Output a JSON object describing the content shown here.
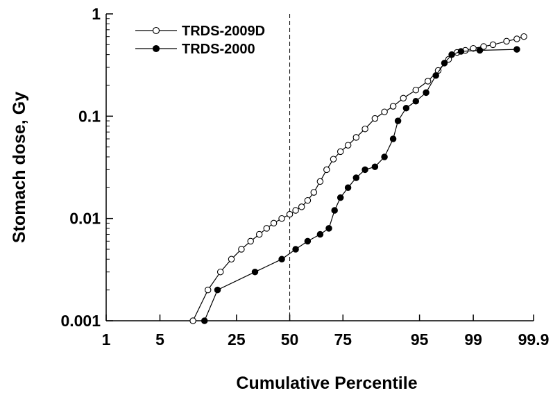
{
  "chart_data": {
    "type": "line",
    "xlabel": "Cumulative Percentile",
    "ylabel": "Stomach dose, Gy",
    "x_scale": "probability",
    "y_scale": "log",
    "xlim": [
      1,
      99.9
    ],
    "ylim": [
      0.001,
      1
    ],
    "x_ticks": [
      "1",
      "5",
      "25",
      "50",
      "75",
      "95",
      "99",
      "99.9"
    ],
    "y_ticks": [
      "0.001",
      "0.01",
      "0.1",
      "1"
    ],
    "reference_line": {
      "x": 50,
      "style": "dashed"
    },
    "legend_position": "top-left",
    "series": [
      {
        "name": "TRDS-2009D",
        "marker": "open-circle",
        "points": [
          [
            11,
            0.001
          ],
          [
            15,
            0.002
          ],
          [
            19,
            0.003
          ],
          [
            23,
            0.004
          ],
          [
            27,
            0.005
          ],
          [
            31,
            0.006
          ],
          [
            35,
            0.007
          ],
          [
            38.5,
            0.008
          ],
          [
            42,
            0.009
          ],
          [
            46,
            0.01
          ],
          [
            50,
            0.011
          ],
          [
            53,
            0.012
          ],
          [
            56,
            0.013
          ],
          [
            59,
            0.015
          ],
          [
            62,
            0.018
          ],
          [
            65,
            0.023
          ],
          [
            68,
            0.03
          ],
          [
            71,
            0.038
          ],
          [
            74,
            0.045
          ],
          [
            77,
            0.052
          ],
          [
            80,
            0.062
          ],
          [
            83,
            0.075
          ],
          [
            86,
            0.095
          ],
          [
            88.5,
            0.11
          ],
          [
            90.5,
            0.125
          ],
          [
            92.5,
            0.15
          ],
          [
            94.5,
            0.18
          ],
          [
            96,
            0.22
          ],
          [
            97,
            0.28
          ],
          [
            97.8,
            0.36
          ],
          [
            98.3,
            0.42
          ],
          [
            98.7,
            0.44
          ],
          [
            99,
            0.46
          ],
          [
            99.3,
            0.48
          ],
          [
            99.5,
            0.5
          ],
          [
            99.7,
            0.54
          ],
          [
            99.8,
            0.57
          ],
          [
            99.85,
            0.6
          ]
        ]
      },
      {
        "name": "TRDS-2000",
        "marker": "filled-circle",
        "points": [
          [
            14,
            0.001
          ],
          [
            18,
            0.002
          ],
          [
            33,
            0.003
          ],
          [
            46,
            0.004
          ],
          [
            53,
            0.005
          ],
          [
            59,
            0.006
          ],
          [
            65,
            0.007
          ],
          [
            69,
            0.008
          ],
          [
            71.5,
            0.012
          ],
          [
            74,
            0.016
          ],
          [
            77,
            0.02
          ],
          [
            80,
            0.025
          ],
          [
            83,
            0.03
          ],
          [
            86,
            0.032
          ],
          [
            88.5,
            0.04
          ],
          [
            90.5,
            0.06
          ],
          [
            91.5,
            0.09
          ],
          [
            93,
            0.12
          ],
          [
            94.5,
            0.14
          ],
          [
            95.8,
            0.17
          ],
          [
            96.8,
            0.25
          ],
          [
            97.5,
            0.33
          ],
          [
            98,
            0.4
          ],
          [
            98.5,
            0.43
          ],
          [
            99.2,
            0.44
          ],
          [
            99.8,
            0.45
          ]
        ]
      }
    ]
  }
}
